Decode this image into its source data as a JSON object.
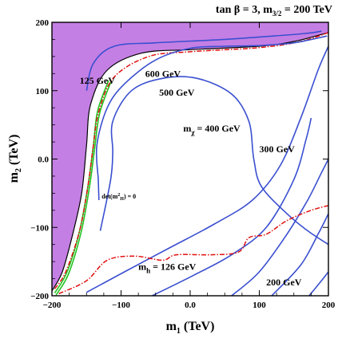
{
  "chart_data": {
    "type": "contour",
    "title_main": "tan β = 3, m",
    "title_sub": "3/2",
    "title_tail": " = 200 TeV",
    "xlabel_main": "m",
    "xlabel_sub": "1",
    "xlabel_tail": " (TeV)",
    "ylabel_main": "m",
    "ylabel_sub": "2",
    "ylabel_tail": " (TeV)",
    "xlim": [
      -200,
      200
    ],
    "ylim": [
      -200,
      200
    ],
    "xticks": [
      -200,
      -100,
      0,
      100,
      200
    ],
    "yticks": [
      -200,
      -100,
      0,
      100,
      200
    ],
    "xtick_labels": [
      "−200",
      "−100",
      "0.0",
      "100",
      "200"
    ],
    "ytick_labels": [
      "−200",
      "−100",
      "0.0",
      "100",
      "200"
    ],
    "excluded_region_color": "#c47fe4",
    "contour_color": "#3a4fd0",
    "mh_line_color": "#e01010",
    "green_band_color": "#22c322",
    "mass_contours": [
      {
        "label": "600 GeV",
        "points": [
          [
            -150,
            100
          ],
          [
            -140,
            140
          ],
          [
            -110,
            165
          ],
          [
            -50,
            170
          ],
          [
            50,
            175
          ],
          [
            120,
            180
          ],
          [
            170,
            184
          ],
          [
            190,
            187
          ]
        ]
      },
      {
        "label": "500 GeV",
        "points": [
          [
            -132,
            -60
          ],
          [
            -133,
            -30
          ],
          [
            -135,
            20
          ],
          [
            -120,
            75
          ],
          [
            -95,
            110
          ],
          [
            -50,
            145
          ],
          [
            0,
            162
          ],
          [
            50,
            165
          ],
          [
            100,
            166
          ],
          [
            150,
            170
          ],
          [
            198,
            180
          ]
        ]
      },
      {
        "label": "400 GeV",
        "points": [
          [
            -130,
            -105
          ],
          [
            -115,
            -30
          ],
          [
            -112,
            10
          ],
          [
            -112,
            55
          ],
          [
            -85,
            100
          ],
          [
            -40,
            118
          ],
          [
            10,
            118
          ],
          [
            60,
            95
          ],
          [
            85,
            55
          ],
          [
            92,
            0
          ],
          [
            103,
            -40
          ],
          [
            140,
            -80
          ],
          [
            170,
            -105
          ],
          [
            200,
            -125
          ]
        ]
      },
      {
        "label": "300 GeV",
        "points": [
          [
            -150,
            -195
          ],
          [
            -95,
            -165
          ],
          [
            -30,
            -130
          ],
          [
            35,
            -95
          ],
          [
            90,
            -60
          ],
          [
            130,
            -10
          ],
          [
            160,
            60
          ],
          [
            185,
            130
          ],
          [
            200,
            165
          ]
        ]
      },
      {
        "label": "200 GeV",
        "points": [
          [
            -55,
            -200
          ],
          [
            5,
            -170
          ],
          [
            60,
            -140
          ],
          [
            110,
            -100
          ],
          [
            150,
            -30
          ],
          [
            168,
            30
          ],
          [
            175,
            60
          ]
        ]
      },
      {
        "label": "",
        "points": [
          [
            60,
            -200
          ],
          [
            100,
            -165
          ],
          [
            140,
            -110
          ],
          [
            170,
            -60
          ],
          [
            190,
            -20
          ],
          [
            200,
            0
          ]
        ]
      },
      {
        "label": "",
        "points": [
          [
            118,
            -200
          ],
          [
            160,
            -155
          ],
          [
            185,
            -110
          ],
          [
            200,
            -80
          ]
        ]
      },
      {
        "label": "",
        "points": [
          [
            172,
            -200
          ],
          [
            190,
            -178
          ],
          [
            200,
            -165
          ]
        ]
      }
    ],
    "excluded_boundary": [
      [
        -200,
        -193
      ],
      [
        -185,
        -165
      ],
      [
        -170,
        -110
      ],
      [
        -157,
        -50
      ],
      [
        -150,
        20
      ],
      [
        -144,
        80
      ],
      [
        -120,
        130
      ],
      [
        -70,
        155
      ],
      [
        0,
        160
      ],
      [
        100,
        165
      ],
      [
        150,
        172
      ],
      [
        200,
        185
      ]
    ],
    "mh_contour": {
      "label_main": "m",
      "label_sub": "h",
      "label_tail": " = 126 GeV",
      "points": [
        [
          -190,
          -197
        ],
        [
          -150,
          -178
        ],
        [
          -120,
          -148
        ],
        [
          -80,
          -142
        ],
        [
          -40,
          -148
        ],
        [
          -20,
          -140
        ],
        [
          30,
          -140
        ],
        [
          70,
          -136
        ],
        [
          85,
          -115
        ],
        [
          110,
          -110
        ],
        [
          140,
          -90
        ],
        [
          175,
          -75
        ],
        [
          200,
          -68
        ]
      ]
    },
    "red_upper": [
      [
        -196,
        -190
      ],
      [
        -180,
        -165
      ],
      [
        -160,
        -105
      ],
      [
        -148,
        -40
      ],
      [
        -140,
        20
      ],
      [
        -132,
        70
      ],
      [
        -110,
        120
      ],
      [
        -60,
        150
      ],
      [
        0,
        157
      ],
      [
        100,
        163
      ],
      [
        160,
        172
      ],
      [
        200,
        185
      ]
    ],
    "green_band": [
      [
        -196,
        -196
      ],
      [
        -178,
        -165
      ],
      [
        -160,
        -105
      ],
      [
        -148,
        -40
      ],
      [
        -140,
        20
      ],
      [
        -134,
        70
      ],
      [
        -118,
        115
      ]
    ],
    "green_band_2": [
      [
        -194,
        -199
      ],
      [
        -176,
        -168
      ],
      [
        -158,
        -108
      ],
      [
        -146,
        -43
      ],
      [
        -138,
        17
      ],
      [
        -131,
        67
      ],
      [
        -115,
        112
      ]
    ],
    "annotations": [
      {
        "text": "125 GeV",
        "kind": "mass",
        "at": [
          -160,
          110
        ]
      },
      {
        "text": "600 GeV",
        "kind": "mass",
        "at": [
          -65,
          120
        ]
      },
      {
        "text": "500 GeV",
        "kind": "mass",
        "at": [
          -45,
          93
        ]
      },
      {
        "text": "300 GeV",
        "kind": "mass",
        "at": [
          100,
          10
        ]
      },
      {
        "text": "200 GeV",
        "kind": "mass",
        "at": [
          110,
          -185
        ]
      }
    ],
    "mchi_label": {
      "main": "m",
      "sub": "χ",
      "tail": " = 400 GeV",
      "at": [
        -10,
        40
      ]
    },
    "det_label": {
      "text": "det(m",
      "sup": "2",
      "sub": "H",
      "tail": ") = 0",
      "at": [
        -128,
        -58
      ]
    }
  }
}
